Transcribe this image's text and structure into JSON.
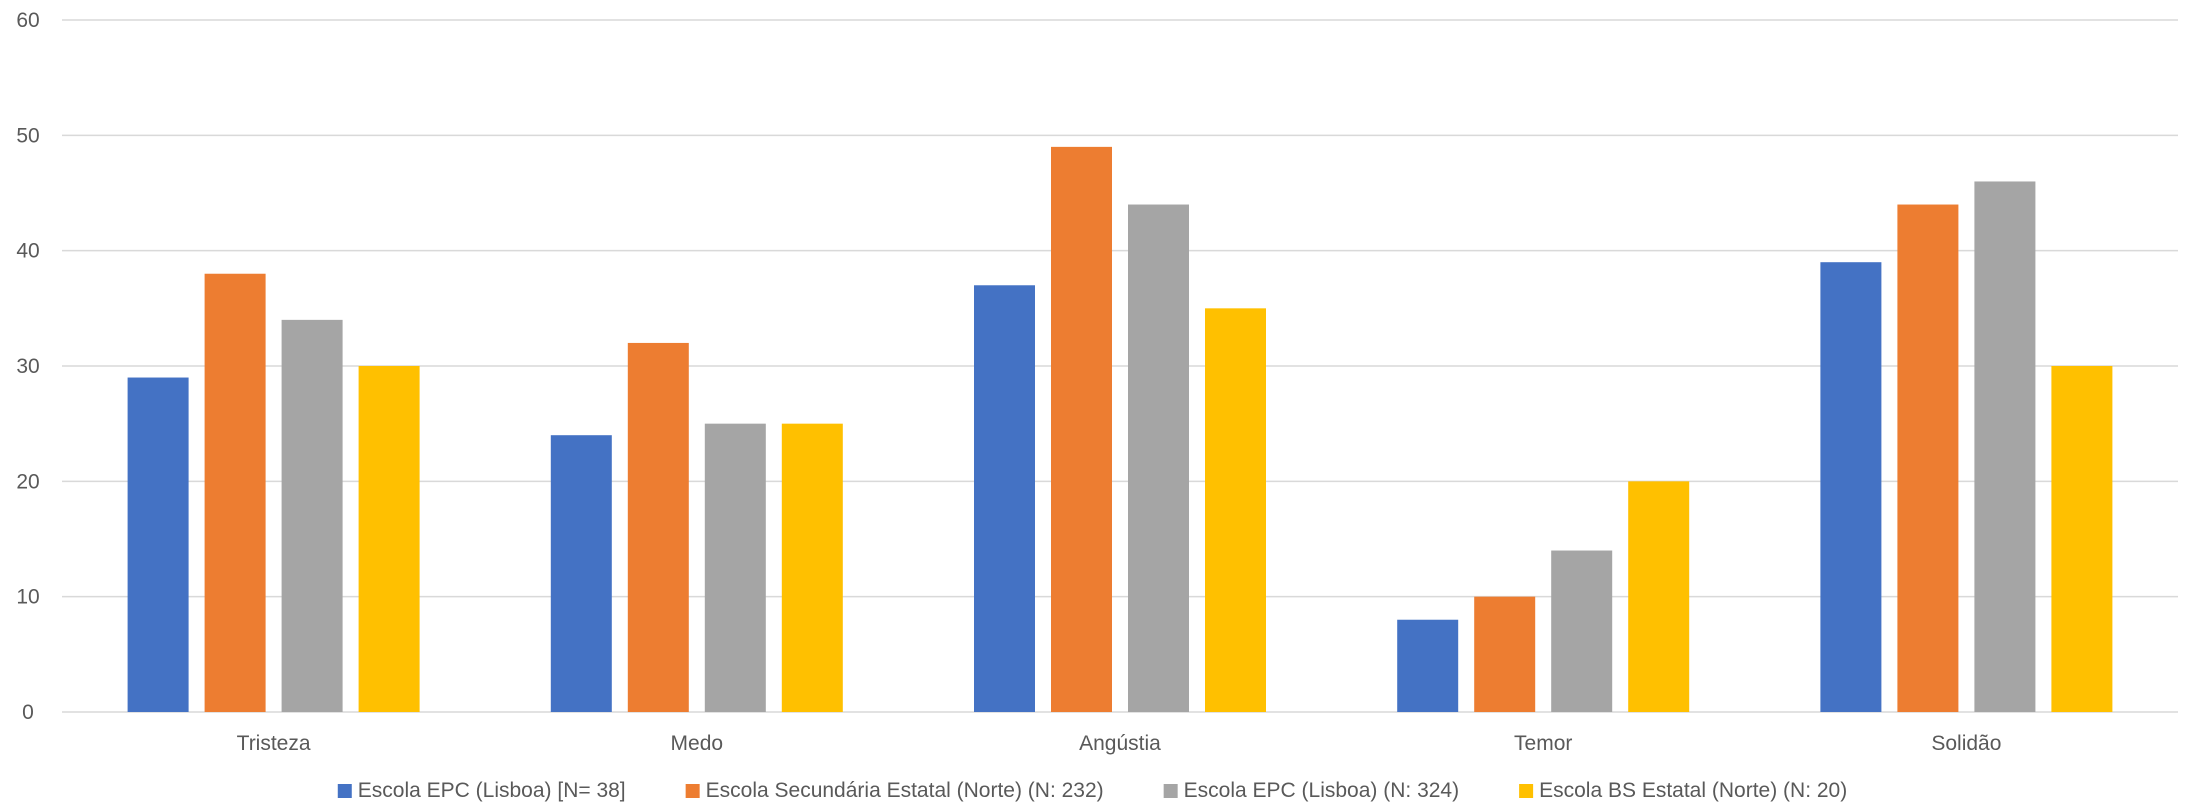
{
  "chart_data": {
    "type": "bar",
    "categories": [
      "Tristeza",
      "Medo",
      "Angústia",
      "Temor",
      "Solidão"
    ],
    "series": [
      {
        "name": "Escola EPC (Lisboa) [N= 38]",
        "color": "#4472c4",
        "values": [
          29,
          24,
          37,
          8,
          39
        ]
      },
      {
        "name": "Escola Secundária Estatal (Norte) (N: 232)",
        "color": "#ed7d31",
        "values": [
          38,
          32,
          49,
          10,
          44
        ]
      },
      {
        "name": "Escola EPC (Lisboa) (N: 324)",
        "color": "#a5a5a5",
        "values": [
          34,
          25,
          44,
          14,
          46
        ]
      },
      {
        "name": "Escola BS Estatal (Norte) (N: 20)",
        "color": "#ffc000",
        "values": [
          30,
          25,
          35,
          20,
          30
        ]
      }
    ],
    "title": "",
    "xlabel": "",
    "ylabel": "",
    "ylim": [
      0,
      60
    ],
    "yticks": [
      0,
      10,
      20,
      30,
      40,
      50,
      60
    ],
    "grid": true,
    "legend_position": "bottom"
  }
}
